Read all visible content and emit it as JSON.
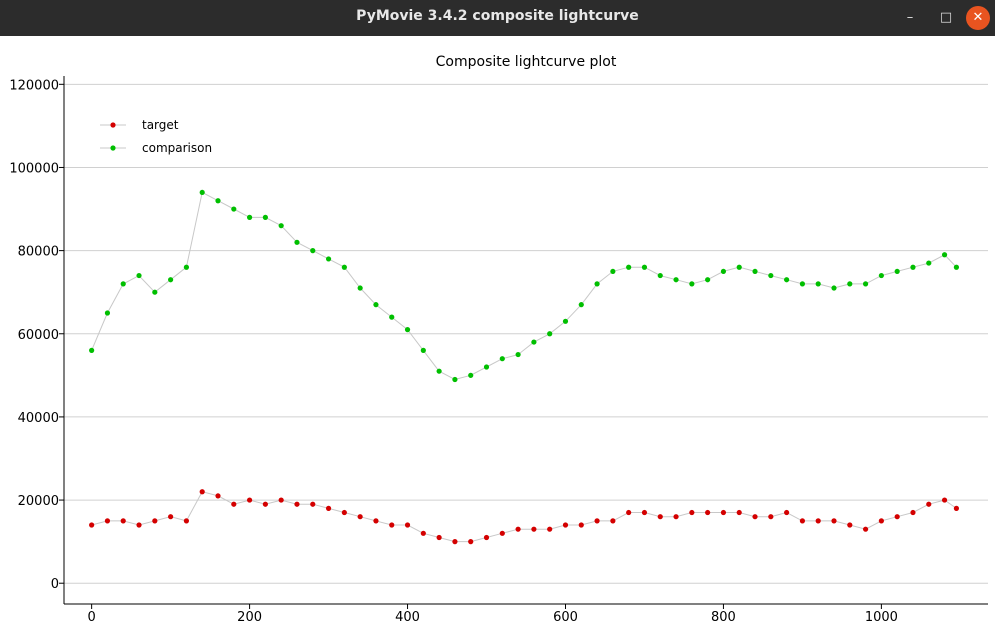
{
  "window": {
    "title": "PyMovie 3.4.2 composite lightcurve",
    "minimize_icon": "minimize-icon",
    "maximize_icon": "maximize-icon",
    "close_icon": "close-icon"
  },
  "chart_data": {
    "type": "scatter",
    "title": "Composite lightcurve plot",
    "xlabel": "",
    "ylabel": "",
    "xlim": [
      -35,
      1135
    ],
    "ylim": [
      -5000,
      122000
    ],
    "x_ticks": [
      0,
      200,
      400,
      600,
      800,
      1000
    ],
    "y_ticks": [
      0,
      20000,
      40000,
      60000,
      80000,
      100000,
      120000
    ],
    "grid": "horizontal",
    "legend_position": "top-left",
    "connect_points": true,
    "connector_color": "#c8c8c8",
    "series": [
      {
        "name": "target",
        "color": "#d40000",
        "x": [
          0,
          20,
          40,
          60,
          80,
          100,
          120,
          140,
          160,
          180,
          200,
          220,
          240,
          260,
          280,
          300,
          320,
          340,
          360,
          380,
          400,
          420,
          440,
          460,
          480,
          500,
          520,
          540,
          560,
          580,
          600,
          620,
          640,
          660,
          680,
          700,
          720,
          740,
          760,
          780,
          800,
          820,
          840,
          860,
          880,
          900,
          920,
          940,
          960,
          980,
          1000,
          1020,
          1040,
          1060,
          1080,
          1095
        ],
        "values": [
          14000,
          15000,
          15000,
          14000,
          15000,
          16000,
          15000,
          22000,
          21000,
          19000,
          20000,
          19000,
          20000,
          19000,
          19000,
          18000,
          17000,
          16000,
          15000,
          14000,
          14000,
          12000,
          11000,
          10000,
          10000,
          11000,
          12000,
          13000,
          13000,
          13000,
          14000,
          14000,
          15000,
          15000,
          17000,
          17000,
          16000,
          16000,
          17000,
          17000,
          17000,
          17000,
          16000,
          16000,
          17000,
          15000,
          15000,
          15000,
          14000,
          13000,
          15000,
          16000,
          17000,
          19000,
          20000,
          18000
        ]
      },
      {
        "name": "comparison",
        "color": "#00bf00",
        "x": [
          0,
          20,
          40,
          60,
          80,
          100,
          120,
          140,
          160,
          180,
          200,
          220,
          240,
          260,
          280,
          300,
          320,
          340,
          360,
          380,
          400,
          420,
          440,
          460,
          480,
          500,
          520,
          540,
          560,
          580,
          600,
          620,
          640,
          660,
          680,
          700,
          720,
          740,
          760,
          780,
          800,
          820,
          840,
          860,
          880,
          900,
          920,
          940,
          960,
          980,
          1000,
          1020,
          1040,
          1060,
          1080,
          1095
        ],
        "values": [
          56000,
          65000,
          72000,
          74000,
          70000,
          73000,
          76000,
          94000,
          92000,
          90000,
          88000,
          88000,
          86000,
          82000,
          80000,
          78000,
          76000,
          71000,
          67000,
          64000,
          61000,
          56000,
          51000,
          49000,
          50000,
          52000,
          54000,
          55000,
          58000,
          60000,
          63000,
          67000,
          72000,
          75000,
          76000,
          76000,
          74000,
          73000,
          72000,
          73000,
          75000,
          76000,
          75000,
          74000,
          73000,
          72000,
          72000,
          71000,
          72000,
          72000,
          74000,
          75000,
          76000,
          77000,
          79000,
          76000
        ]
      }
    ]
  }
}
